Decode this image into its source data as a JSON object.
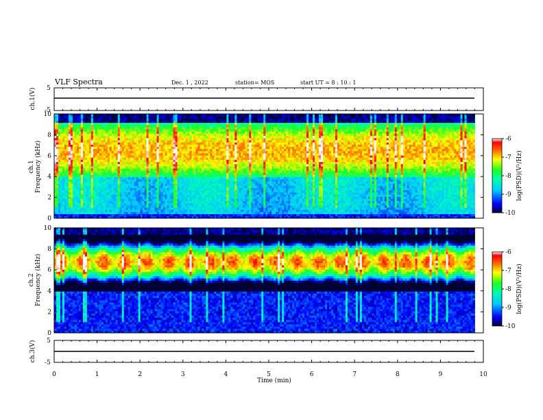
{
  "header": {
    "title": "VLF Spectra",
    "date": "Dec. 1 , 2022",
    "station": "station= MOS",
    "start_ut": "start UT =   8 : 10 : 1"
  },
  "chart_data": [
    {
      "type": "line",
      "panel": "ch1-voltage",
      "ylabel": "ch.1(V)",
      "ylim": [
        -5,
        5
      ],
      "yticklabels": [
        "5",
        "-5"
      ],
      "series": [
        {
          "values": [
            {
              "x": 0,
              "y": 0
            },
            {
              "x": 9.8,
              "y": 0
            }
          ]
        }
      ]
    },
    {
      "type": "heatmap",
      "panel": "ch1-spectrogram",
      "ylabel": "ch.1\nFrequency (kHz)",
      "ylim": [
        0,
        10
      ],
      "yticks": [
        0,
        2,
        4,
        6,
        8,
        10
      ],
      "xlim": [
        0,
        10
      ],
      "colorbar": {
        "label": "log(PSD)(V²/Hz)",
        "range": [
          -10,
          -6
        ],
        "ticks": [
          "-6",
          "-7",
          "-8",
          "-9",
          "-10"
        ]
      },
      "dominant_band_khz": [
        4,
        9
      ]
    },
    {
      "type": "heatmap",
      "panel": "ch2-spectrogram",
      "ylabel": "ch.2\nFrequency (kHz)",
      "ylim": [
        0,
        10
      ],
      "yticks": [
        0,
        2,
        4,
        6,
        8,
        10
      ],
      "xlim": [
        0,
        10
      ],
      "colorbar": {
        "label": "log(PSD)(V²/Hz)",
        "range": [
          -10,
          -6
        ],
        "ticks": [
          "-6",
          "-7",
          "-8",
          "-9",
          "-10"
        ]
      },
      "dominant_band_khz": [
        5.5,
        8
      ]
    },
    {
      "type": "line",
      "panel": "ch3-voltage",
      "ylabel": "ch.3(V)",
      "ylim": [
        -5,
        5
      ],
      "yticklabels": [
        "5",
        "-5"
      ],
      "series": [
        {
          "values": [
            {
              "x": 0,
              "y": 0
            },
            {
              "x": 9.8,
              "y": 0
            }
          ]
        }
      ]
    }
  ],
  "xaxis": {
    "label": "Time  (min)",
    "ticks": [
      "0",
      "1",
      "2",
      "3",
      "4",
      "5",
      "6",
      "7",
      "8",
      "9",
      "10"
    ],
    "xlim": [
      0,
      10
    ]
  }
}
